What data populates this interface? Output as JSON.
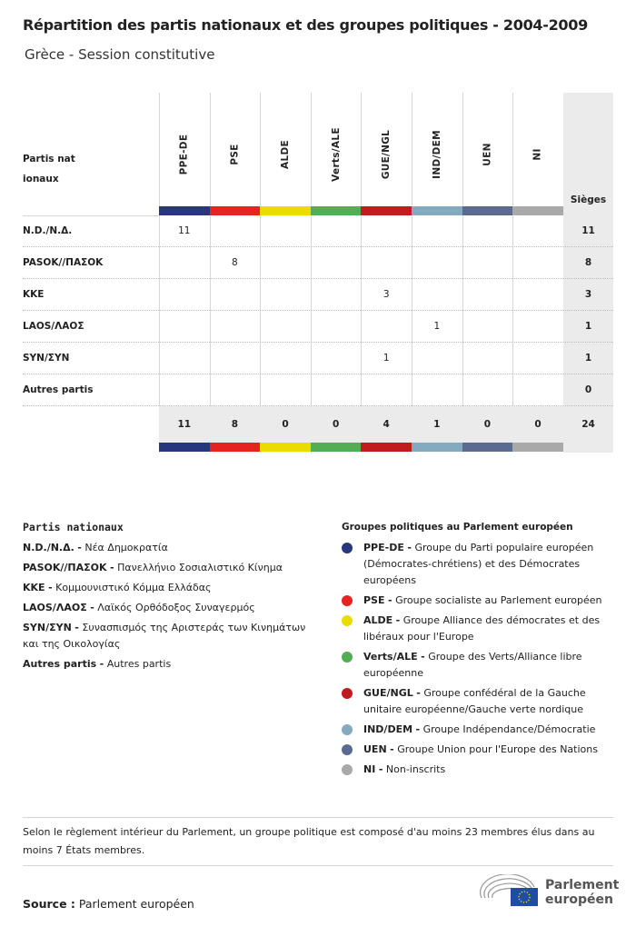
{
  "title": "Répartition des partis nationaux et des groupes politiques - 2004-2009",
  "subtitle": "Grèce - Session constitutive",
  "chart_data": {
    "type": "table",
    "row_header": "Partis nationaux",
    "total_header": "Sièges",
    "groups": [
      {
        "name": "PPE-DE",
        "color": "#27367d"
      },
      {
        "name": "PSE",
        "color": "#e52421"
      },
      {
        "name": "ALDE",
        "color": "#ebdc00"
      },
      {
        "name": "Verts/ALE",
        "color": "#52ad55"
      },
      {
        "name": "GUE/NGL",
        "color": "#c01b1e"
      },
      {
        "name": "IND/DEM",
        "color": "#84aac0"
      },
      {
        "name": "UEN",
        "color": "#5a6a91"
      },
      {
        "name": "NI",
        "color": "#a9a9a9"
      }
    ],
    "rows": [
      {
        "party": "N.D./Ν.Δ.",
        "values": [
          11,
          null,
          null,
          null,
          null,
          null,
          null,
          null
        ],
        "total": 11
      },
      {
        "party": "PASOK//ΠΑΣΟΚ",
        "values": [
          null,
          8,
          null,
          null,
          null,
          null,
          null,
          null
        ],
        "total": 8
      },
      {
        "party": "KKE",
        "values": [
          null,
          null,
          null,
          null,
          3,
          null,
          null,
          null
        ],
        "total": 3
      },
      {
        "party": "LAOS/ΛΑΟΣ",
        "values": [
          null,
          null,
          null,
          null,
          null,
          1,
          null,
          null
        ],
        "total": 1
      },
      {
        "party": "SYN/ΣΥΝ",
        "values": [
          null,
          null,
          null,
          null,
          1,
          null,
          null,
          null
        ],
        "total": 1
      },
      {
        "party": "Autres partis",
        "values": [
          null,
          null,
          null,
          null,
          null,
          null,
          null,
          null
        ],
        "total": 0
      }
    ],
    "group_totals": [
      11,
      8,
      0,
      0,
      4,
      1,
      0,
      0
    ],
    "grand_total": 24
  },
  "legend_parties": {
    "title": "Partis nationaux",
    "items": [
      {
        "abbr": "N.D./Ν.Δ.",
        "name": "Νέα Δημοκρατία"
      },
      {
        "abbr": "PASOK//ΠΑΣΟΚ",
        "name": "Πανελλήνιο Σοσιαλιστικό Κίνημα"
      },
      {
        "abbr": "KKE",
        "name": "Κομμουνιστικό Κόμμα Ελλάδας"
      },
      {
        "abbr": "LAOS/ΛΑΟΣ",
        "name": "Λαϊκός Ορθόδοξος Συναγερμός"
      },
      {
        "abbr": "SYN/ΣΥΝ",
        "name": "Συνασπισμός της Αριστεράς των Κινημάτων και της Οικολογίας"
      },
      {
        "abbr": "Autres partis",
        "name": "Autres partis"
      }
    ]
  },
  "legend_groups": {
    "title": "Groupes politiques au Parlement européen",
    "items": [
      {
        "abbr": "PPE-DE",
        "name": "Groupe du Parti populaire européen (Démocrates-chrétiens) et des Démocrates européens"
      },
      {
        "abbr": "PSE",
        "name": "Groupe socialiste au Parlement européen"
      },
      {
        "abbr": "ALDE",
        "name": "Groupe Alliance des démocrates et des libéraux pour l'Europe"
      },
      {
        "abbr": "Verts/ALE",
        "name": "Groupe des Verts/Alliance libre européenne"
      },
      {
        "abbr": "GUE/NGL",
        "name": "Groupe confédéral de la Gauche unitaire européenne/Gauche verte nordique"
      },
      {
        "abbr": "IND/DEM",
        "name": "Groupe Indépendance/Démocratie"
      },
      {
        "abbr": "UEN",
        "name": "Groupe Union pour l'Europe des Nations"
      },
      {
        "abbr": "NI",
        "name": "Non-inscrits"
      }
    ]
  },
  "note": "Selon le règlement intérieur du Parlement, un groupe politique est composé d'au moins 23 membres élus dans au moins 7 États membres.",
  "source_label": "Source :",
  "source": "Parlement européen",
  "logo_text": "Parlement européen"
}
